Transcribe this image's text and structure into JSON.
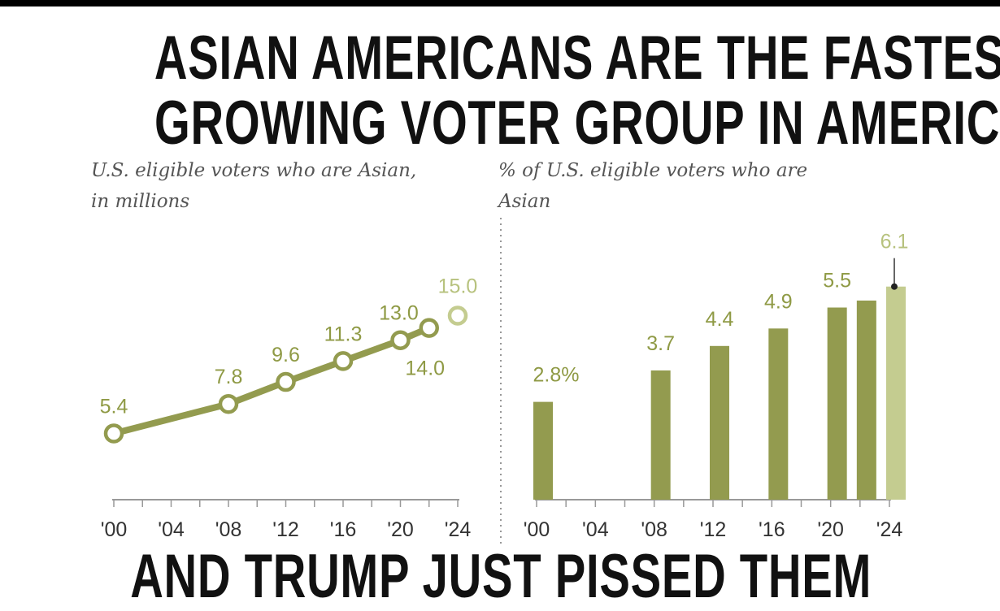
{
  "headline": {
    "line1": "ASIAN AMERICANS ARE THE FASTEST",
    "line2": "GROWING VOTER GROUP IN AMERICA",
    "bottom_cut": "AND TRUMP JUST PISSED THEM"
  },
  "colors": {
    "series": "#939b4f",
    "projected": "#c4cc90",
    "label": "#8f9a45",
    "projected_label": "#b7c27e",
    "axis": "#999999"
  },
  "chart_data": [
    {
      "type": "line",
      "subtitle_line1": "U.S. eligible voters who are Asian,",
      "subtitle_line2": "in millions",
      "x_ticks": [
        "'00",
        "'04",
        "'08",
        "'12",
        "'16",
        "'20",
        "'24"
      ],
      "xlim": [
        2000,
        2024
      ],
      "ylim": [
        0,
        15
      ],
      "points": [
        {
          "year": 2000,
          "value": 5.4,
          "label": "5.4"
        },
        {
          "year": 2008,
          "value": 7.8,
          "label": "7.8"
        },
        {
          "year": 2012,
          "value": 9.6,
          "label": "9.6"
        },
        {
          "year": 2016,
          "value": 11.3,
          "label": "11.3"
        },
        {
          "year": 2020,
          "value": 13.0,
          "label": "13.0"
        },
        {
          "year": 2022,
          "value": 14.0,
          "label": "14.0"
        },
        {
          "year": 2024,
          "value": 15.0,
          "label": "15.0",
          "projected": true
        }
      ]
    },
    {
      "type": "bar",
      "subtitle_line1": "% of U.S. eligible voters who are",
      "subtitle_line2": "Asian",
      "x_ticks": [
        "'00",
        "'04",
        "'08",
        "'12",
        "'16",
        "'20",
        "'24"
      ],
      "xlim": [
        2000,
        2024
      ],
      "ylim": [
        0,
        6.1
      ],
      "bars": [
        {
          "year": 2000,
          "value": 2.8,
          "label": "2.8%"
        },
        {
          "year": 2008,
          "value": 3.7,
          "label": "3.7"
        },
        {
          "year": 2012,
          "value": 4.4,
          "label": "4.4"
        },
        {
          "year": 2016,
          "value": 4.9,
          "label": "4.9"
        },
        {
          "year": 2020,
          "value": 5.5,
          "label": "5.5"
        },
        {
          "year": 2022,
          "value": 5.7,
          "label": ""
        },
        {
          "year": 2024,
          "value": 6.1,
          "label": "6.1",
          "projected": true
        }
      ]
    }
  ]
}
